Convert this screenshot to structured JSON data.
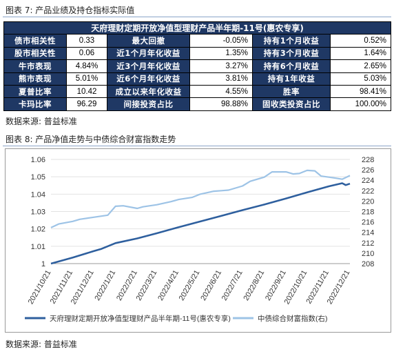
{
  "caption_top": "图表 7: 产品业绩及持仓指标实际值",
  "table": {
    "title": "天府理财定期开放净值型理财产品半年期-11号(惠农专享)",
    "rows": [
      [
        {
          "label": "债市相关性",
          "value": "0.33"
        },
        {
          "label": "最大回撤",
          "value": "-0.05%"
        },
        {
          "label": "持有1个月收益",
          "value": "0.52%"
        }
      ],
      [
        {
          "label": "股市相关性",
          "value": "0.06"
        },
        {
          "label": "近1个月年化收益",
          "value": "1.35%"
        },
        {
          "label": "持有3个月收益",
          "value": "1.64%"
        }
      ],
      [
        {
          "label": "牛市表现",
          "value": "4.84%"
        },
        {
          "label": "近3个月年化收益",
          "value": "3.27%"
        },
        {
          "label": "持有6个月收益",
          "value": "2.65%"
        }
      ],
      [
        {
          "label": "熊市表现",
          "value": "5.01%"
        },
        {
          "label": "近6个月年化收益",
          "value": "3.81%"
        },
        {
          "label": "持有1年收益",
          "value": "5.03%"
        }
      ],
      [
        {
          "label": "夏普比率",
          "value": "10.42"
        },
        {
          "label": "成立以来年化收益",
          "value": "4.55%"
        },
        {
          "label": "胜率",
          "value": "98.41%"
        }
      ],
      [
        {
          "label": "卡玛比率",
          "value": "96.29"
        },
        {
          "label": "间接投资占比",
          "value": "98.88%"
        },
        {
          "label": "固收类投资占比",
          "value": "100.00%"
        }
      ]
    ]
  },
  "source_1": "数据来源: 普益标准",
  "caption_chart": "图表 8: 产品净值走势与中债综合财富指数走势",
  "source_2": "数据来源: 普益标准",
  "chart_data": {
    "type": "line",
    "x_ticks": [
      "2021/10/21",
      "2021/11/21",
      "2021/12/21",
      "2022/1/21",
      "2022/2/21",
      "2022/3/21",
      "2022/4/21",
      "2022/5/21",
      "2022/6/21",
      "2022/7/21",
      "2022/8/21",
      "2022/9/21",
      "2022/10/21",
      "2022/11/21",
      "2022/12/21"
    ],
    "y_left": {
      "min": 1.0,
      "max": 1.06,
      "ticks": [
        1,
        1.01,
        1.02,
        1.03,
        1.04,
        1.05,
        1.06
      ],
      "tick_labels": [
        "1",
        "1.01",
        "1.02",
        "1.03",
        "1.04",
        "1.05",
        "1.06"
      ]
    },
    "y_right": {
      "min": 208,
      "max": 228,
      "ticks": [
        208,
        210,
        212,
        214,
        216,
        218,
        220,
        222,
        224,
        226,
        228
      ],
      "tick_labels": [
        "208",
        "210",
        "212",
        "214",
        "216",
        "218",
        "220",
        "222",
        "224",
        "226",
        "228"
      ]
    },
    "grid": "horizontal",
    "legend_position": "bottom",
    "series": [
      {
        "name": "天府理财定期开放净值型理财产品半年期-11号(惠农专享)",
        "axis": "left",
        "color": "#2e5f9e",
        "x": [
          "2021/10/21",
          "2021/11/21",
          "2021/12/21",
          "2022/1/1",
          "2022/1/21",
          "2022/2/21",
          "2022/3/21",
          "2022/4/21",
          "2022/5/21",
          "2022/6/21",
          "2022/7/21",
          "2022/8/21",
          "2022/9/21",
          "2022/10/21",
          "2022/11/21",
          "2022/12/10",
          "2022/12/15",
          "2022/12/21"
        ],
        "values": [
          1.0,
          1.0035,
          1.0072,
          1.0085,
          1.0118,
          1.0145,
          1.0175,
          1.021,
          1.0242,
          1.0275,
          1.0308,
          1.034,
          1.0375,
          1.041,
          1.0445,
          1.0463,
          1.0452,
          1.046
        ]
      },
      {
        "name": "中债综合财富指数(右)",
        "axis": "right",
        "color": "#9dc3e6",
        "x": [
          "2021/10/21",
          "2021/11/1",
          "2021/11/21",
          "2021/12/1",
          "2021/12/21",
          "2022/1/10",
          "2022/1/21",
          "2022/2/1",
          "2022/2/21",
          "2022/3/1",
          "2022/3/21",
          "2022/4/10",
          "2022/4/21",
          "2022/5/10",
          "2022/5/21",
          "2022/6/10",
          "2022/6/21",
          "2022/7/1",
          "2022/7/21",
          "2022/8/1",
          "2022/8/21",
          "2022/9/1",
          "2022/9/21",
          "2022/10/1",
          "2022/10/10",
          "2022/10/21",
          "2022/11/1",
          "2022/11/10",
          "2022/11/21",
          "2022/12/1",
          "2022/12/10",
          "2022/12/21"
        ],
        "values": [
          214.9,
          215.6,
          216.1,
          216.5,
          216.9,
          217.3,
          219.0,
          219.1,
          218.6,
          218.9,
          219.3,
          219.9,
          220.3,
          220.7,
          221.3,
          221.9,
          222.0,
          222.1,
          222.9,
          223.8,
          224.6,
          225.6,
          225.6,
          225.2,
          225.3,
          225.9,
          225.8,
          224.8,
          224.6,
          224.4,
          224.2,
          224.9
        ]
      }
    ]
  }
}
